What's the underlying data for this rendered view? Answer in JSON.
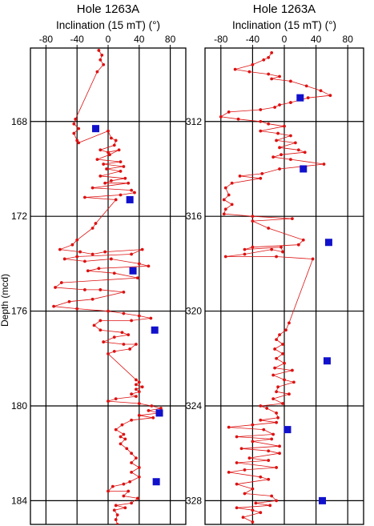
{
  "chart_data": [
    {
      "type": "scatter",
      "title": "Hole 1263A",
      "xlabel": "Inclination (15 mT) (°)",
      "ylabel": "Depth (mcd)",
      "xlim": [
        -100,
        100
      ],
      "ylim": [
        164.9,
        185
      ],
      "xticks": [
        -80,
        -40,
        0,
        40,
        80
      ],
      "yticks": [
        168,
        172,
        176,
        180,
        184
      ],
      "grid": true,
      "colors": {
        "line": "#dd1111",
        "square": "#1111cc"
      },
      "series": [
        {
          "marker": "dot-line",
          "points": [
            [
              -12,
              165.0
            ],
            [
              -8,
              165.2
            ],
            [
              -10,
              165.4
            ],
            [
              -6,
              165.6
            ],
            [
              -14,
              165.9
            ],
            [
              -42,
              167.9
            ],
            [
              -44,
              168.1
            ],
            [
              -38,
              168.3
            ],
            [
              -44,
              168.5
            ],
            [
              -40,
              168.8
            ],
            [
              -38,
              168.9
            ],
            [
              0,
              168.4
            ],
            [
              4,
              168.7
            ],
            [
              10,
              168.8
            ],
            [
              8,
              169.0
            ],
            [
              -10,
              169.2
            ],
            [
              0,
              169.3
            ],
            [
              14,
              169.2
            ],
            [
              2,
              169.4
            ],
            [
              -14,
              169.6
            ],
            [
              16,
              169.7
            ],
            [
              -6,
              169.8
            ],
            [
              20,
              169.9
            ],
            [
              -2,
              170.0
            ],
            [
              16,
              170.1
            ],
            [
              -10,
              170.3
            ],
            [
              22,
              170.4
            ],
            [
              4,
              170.5
            ],
            [
              -4,
              170.6
            ],
            [
              26,
              170.6
            ],
            [
              -20,
              170.8
            ],
            [
              30,
              170.9
            ],
            [
              34,
              171.0
            ],
            [
              16,
              171.1
            ],
            [
              -30,
              171.2
            ],
            [
              10,
              171.3
            ],
            [
              -16,
              172.3
            ],
            [
              -20,
              172.5
            ],
            [
              -40,
              173.0
            ],
            [
              -46,
              173.2
            ],
            [
              -62,
              173.4
            ],
            [
              -36,
              173.5
            ],
            [
              -20,
              173.6
            ],
            [
              -4,
              173.5
            ],
            [
              44,
              173.4
            ],
            [
              30,
              173.6
            ],
            [
              -40,
              173.7
            ],
            [
              -56,
              173.8
            ],
            [
              -30,
              173.9
            ],
            [
              4,
              173.8
            ],
            [
              40,
              174.0
            ],
            [
              52,
              174.1
            ],
            [
              -12,
              174.2
            ],
            [
              -26,
              174.3
            ],
            [
              8,
              174.4
            ],
            [
              38,
              174.6
            ],
            [
              -60,
              174.8
            ],
            [
              -68,
              175.0
            ],
            [
              -30,
              175.1
            ],
            [
              -10,
              175.1
            ],
            [
              20,
              175.2
            ],
            [
              -20,
              175.5
            ],
            [
              -50,
              175.6
            ],
            [
              -70,
              175.8
            ],
            [
              -40,
              175.9
            ],
            [
              0,
              176.0
            ],
            [
              20,
              176.1
            ],
            [
              40,
              176.2
            ],
            [
              55,
              176.3
            ],
            [
              30,
              176.4
            ],
            [
              -10,
              176.4
            ],
            [
              -18,
              176.6
            ],
            [
              -10,
              176.8
            ],
            [
              18,
              176.9
            ],
            [
              26,
              177.0
            ],
            [
              8,
              177.1
            ],
            [
              -6,
              177.3
            ],
            [
              20,
              177.4
            ],
            [
              36,
              177.4
            ],
            [
              28,
              177.6
            ],
            [
              8,
              177.7
            ],
            [
              0,
              177.8
            ],
            [
              36,
              178.9
            ],
            [
              40,
              179.0
            ],
            [
              36,
              179.1
            ],
            [
              44,
              179.2
            ],
            [
              36,
              179.3
            ],
            [
              40,
              179.4
            ],
            [
              30,
              179.5
            ],
            [
              36,
              179.6
            ],
            [
              10,
              179.7
            ],
            [
              0,
              179.8
            ],
            [
              40,
              179.9
            ],
            [
              56,
              180.0
            ],
            [
              68,
              180.1
            ],
            [
              52,
              180.2
            ],
            [
              66,
              180.3
            ],
            [
              40,
              180.4
            ],
            [
              58,
              180.5
            ],
            [
              30,
              180.6
            ],
            [
              18,
              180.8
            ],
            [
              10,
              181.0
            ],
            [
              20,
              181.2
            ],
            [
              16,
              181.3
            ],
            [
              22,
              181.4
            ],
            [
              16,
              181.6
            ],
            [
              24,
              181.8
            ],
            [
              30,
              182.0
            ],
            [
              36,
              182.2
            ],
            [
              30,
              182.4
            ],
            [
              40,
              182.6
            ],
            [
              30,
              182.8
            ],
            [
              40,
              183.0
            ],
            [
              28,
              183.2
            ],
            [
              20,
              183.3
            ],
            [
              6,
              183.4
            ],
            [
              0,
              183.6
            ],
            [
              26,
              183.6
            ],
            [
              20,
              183.8
            ],
            [
              38,
              183.9
            ],
            [
              30,
              184.1
            ],
            [
              10,
              184.2
            ],
            [
              22,
              184.3
            ],
            [
              8,
              184.4
            ],
            [
              12,
              184.6
            ],
            [
              10,
              184.8
            ],
            [
              12,
              185.0
            ]
          ]
        },
        {
          "marker": "square",
          "points": [
            [
              -16,
              168.3
            ],
            [
              28,
              171.3
            ],
            [
              32,
              174.3
            ],
            [
              60,
              176.8
            ],
            [
              66,
              180.3
            ],
            [
              62,
              183.2
            ]
          ]
        }
      ]
    },
    {
      "type": "scatter",
      "title": "Hole 1263A",
      "xlabel": "Inclination (15 mT) (°)",
      "ylabel": "",
      "xlim": [
        -100,
        100
      ],
      "ylim": [
        308.9,
        329
      ],
      "xticks": [
        -80,
        -40,
        0,
        40,
        80
      ],
      "yticks": [
        312,
        316,
        320,
        324,
        328
      ],
      "grid": true,
      "colors": {
        "line": "#dd1111",
        "square": "#1111cc"
      },
      "series": [
        {
          "marker": "dot-line",
          "points": [
            [
              -16,
              309.1
            ],
            [
              -20,
              309.3
            ],
            [
              -26,
              309.4
            ],
            [
              -40,
              309.6
            ],
            [
              -62,
              309.8
            ],
            [
              -44,
              309.9
            ],
            [
              -20,
              310.0
            ],
            [
              -6,
              310.1
            ],
            [
              -16,
              310.2
            ],
            [
              8,
              310.3
            ],
            [
              28,
              310.5
            ],
            [
              46,
              310.7
            ],
            [
              58,
              310.9
            ],
            [
              30,
              311.0
            ],
            [
              8,
              311.2
            ],
            [
              -6,
              311.3
            ],
            [
              -12,
              311.4
            ],
            [
              -30,
              311.5
            ],
            [
              -70,
              311.6
            ],
            [
              -80,
              311.8
            ],
            [
              -58,
              311.9
            ],
            [
              -30,
              312.0
            ],
            [
              -20,
              312.1
            ],
            [
              0,
              312.2
            ],
            [
              -30,
              312.4
            ],
            [
              -8,
              312.5
            ],
            [
              8,
              312.6
            ],
            [
              -10,
              312.8
            ],
            [
              14,
              312.9
            ],
            [
              -6,
              313.1
            ],
            [
              18,
              313.2
            ],
            [
              26,
              313.3
            ],
            [
              -4,
              313.4
            ],
            [
              -14,
              313.5
            ],
            [
              8,
              313.6
            ],
            [
              50,
              313.8
            ],
            [
              -6,
              314.0
            ],
            [
              -28,
              314.2
            ],
            [
              -56,
              314.3
            ],
            [
              -30,
              314.4
            ],
            [
              -66,
              314.6
            ],
            [
              -74,
              314.8
            ],
            [
              -70,
              315.1
            ],
            [
              -76,
              315.3
            ],
            [
              -66,
              315.5
            ],
            [
              -74,
              315.7
            ],
            [
              -76,
              315.9
            ],
            [
              -40,
              316.0
            ],
            [
              10,
              316.1
            ],
            [
              -40,
              316.2
            ],
            [
              -20,
              316.5
            ],
            [
              24,
              317.0
            ],
            [
              18,
              317.2
            ],
            [
              -40,
              317.3
            ],
            [
              -50,
              317.4
            ],
            [
              -4,
              317.3
            ],
            [
              -2,
              317.5
            ],
            [
              -16,
              317.4
            ],
            [
              -50,
              317.6
            ],
            [
              -74,
              317.7
            ],
            [
              -10,
              317.7
            ],
            [
              36,
              317.8
            ],
            [
              6,
              320.5
            ],
            [
              2,
              320.8
            ],
            [
              -6,
              321.0
            ],
            [
              -10,
              321.2
            ],
            [
              -2,
              321.4
            ],
            [
              -12,
              321.6
            ],
            [
              -2,
              321.8
            ],
            [
              -10,
              322.0
            ],
            [
              0,
              322.2
            ],
            [
              -12,
              322.4
            ],
            [
              10,
              322.5
            ],
            [
              -14,
              322.7
            ],
            [
              0,
              322.9
            ],
            [
              12,
              323.0
            ],
            [
              -8,
              323.2
            ],
            [
              -10,
              323.4
            ],
            [
              6,
              323.5
            ],
            [
              -14,
              323.7
            ],
            [
              -2,
              323.9
            ],
            [
              -30,
              324.0
            ],
            [
              -22,
              324.1
            ],
            [
              -10,
              324.3
            ],
            [
              -8,
              324.5
            ],
            [
              -30,
              324.6
            ],
            [
              -10,
              324.7
            ],
            [
              -40,
              324.8
            ],
            [
              -70,
              324.9
            ],
            [
              -26,
              325.0
            ],
            [
              -14,
              325.2
            ],
            [
              -60,
              325.3
            ],
            [
              -16,
              325.4
            ],
            [
              -40,
              325.5
            ],
            [
              -6,
              325.7
            ],
            [
              -54,
              325.8
            ],
            [
              -20,
              325.9
            ],
            [
              -6,
              326.0
            ],
            [
              -44,
              326.2
            ],
            [
              -20,
              326.3
            ],
            [
              -60,
              326.4
            ],
            [
              -10,
              326.6
            ],
            [
              -50,
              326.7
            ],
            [
              -70,
              326.8
            ],
            [
              -30,
              327.0
            ],
            [
              -20,
              327.1
            ],
            [
              -60,
              327.3
            ],
            [
              -40,
              327.5
            ],
            [
              -50,
              327.7
            ],
            [
              -16,
              327.8
            ],
            [
              -10,
              328.0
            ],
            [
              -36,
              328.1
            ],
            [
              -18,
              328.2
            ],
            [
              -60,
              328.3
            ],
            [
              -40,
              328.4
            ],
            [
              -30,
              328.5
            ],
            [
              -52,
              328.7
            ],
            [
              -40,
              328.9
            ]
          ]
        },
        {
          "marker": "square",
          "points": [
            [
              20,
              311.0
            ],
            [
              24,
              314.0
            ],
            [
              56,
              317.1
            ],
            [
              54,
              322.1
            ],
            [
              4,
              325.0
            ],
            [
              48,
              328.0
            ]
          ]
        }
      ]
    }
  ]
}
